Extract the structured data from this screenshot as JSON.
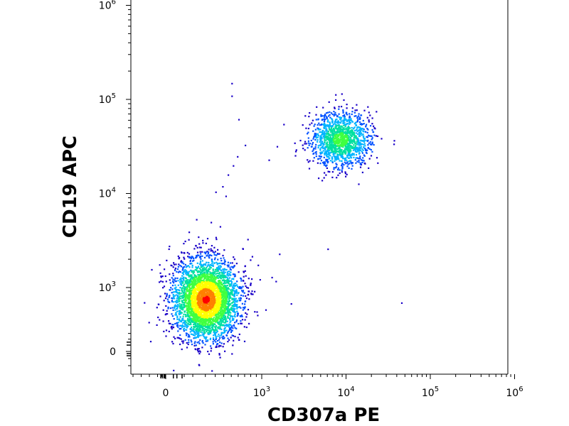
{
  "chart_data": {
    "type": "scatter",
    "style": "flow-cytometry density dot plot",
    "xlabel": "CD307a PE",
    "ylabel": "CD19 APC",
    "x_scale": "biexponential",
    "y_scale": "biexponential",
    "xlim": [
      -400,
      1000000
    ],
    "ylim": [
      -100,
      1000000
    ],
    "x_ticks": [
      {
        "value": 0,
        "base": "0",
        "exp": ""
      },
      {
        "value": 1000,
        "base": "10",
        "exp": "3"
      },
      {
        "value": 10000,
        "base": "10",
        "exp": "4"
      },
      {
        "value": 100000,
        "base": "10",
        "exp": "5"
      },
      {
        "value": 1000000,
        "base": "10",
        "exp": "6"
      }
    ],
    "y_ticks": [
      {
        "value": 0,
        "base": "0",
        "exp": ""
      },
      {
        "value": 1000,
        "base": "10",
        "exp": "3"
      },
      {
        "value": 10000,
        "base": "10",
        "exp": "4"
      },
      {
        "value": 100000,
        "base": "10",
        "exp": "5"
      },
      {
        "value": 1000000,
        "base": "10",
        "exp": "6"
      }
    ],
    "grid": false,
    "legend": "none",
    "density_colors": [
      "#1a00c8",
      "#0050ff",
      "#00b4ff",
      "#00e0a0",
      "#40ff40",
      "#ffff00",
      "#ff8000",
      "#ff0000"
    ],
    "populations": [
      {
        "center_x": 200,
        "center_y": 700,
        "count": 3800,
        "peak_density": "high"
      },
      {
        "center_x": 8500,
        "center_y": 38000,
        "count": 1400,
        "peak_density": "medium"
      }
    ],
    "sparse_events": [
      {
        "x": 500,
        "y": 150000
      },
      {
        "x": 500,
        "y": 110000
      },
      {
        "x": 600,
        "y": 62000
      },
      {
        "x": 700,
        "y": 33000
      },
      {
        "x": 580,
        "y": 25000
      },
      {
        "x": 520,
        "y": 20000
      },
      {
        "x": 450,
        "y": 16000
      },
      {
        "x": 380,
        "y": 12000
      },
      {
        "x": 300,
        "y": 10500
      },
      {
        "x": 420,
        "y": 9500
      },
      {
        "x": 250,
        "y": 5000
      },
      {
        "x": 350,
        "y": 4500
      },
      {
        "x": 200,
        "y": 3000
      },
      {
        "x": 1800,
        "y": 55000
      },
      {
        "x": 1500,
        "y": 32000
      },
      {
        "x": 1200,
        "y": 23000
      },
      {
        "x": 1300,
        "y": 1300
      },
      {
        "x": 1600,
        "y": 2300
      },
      {
        "x": 2200,
        "y": 600
      },
      {
        "x": 6000,
        "y": 2600
      },
      {
        "x": 45000,
        "y": 620
      },
      {
        "x": 1100,
        "y": 470
      },
      {
        "x": 900,
        "y": 430
      }
    ]
  }
}
